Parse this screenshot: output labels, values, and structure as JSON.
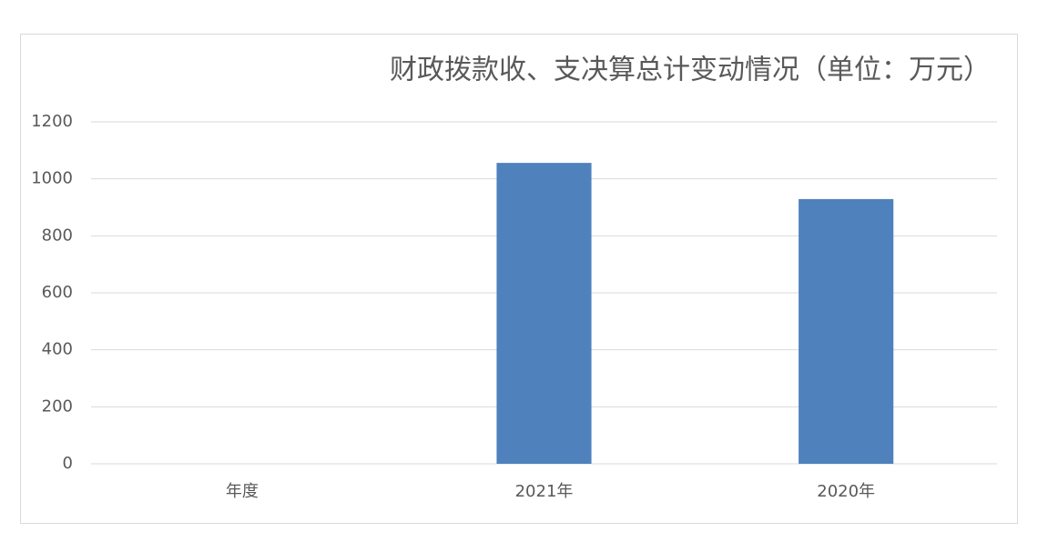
{
  "chart_data": {
    "type": "bar",
    "title": "财政拨款收、支决算总计变动情况（单位：万元）",
    "categories": [
      "年度",
      "2021年",
      "2020年"
    ],
    "values": [
      null,
      1056,
      929
    ],
    "color": "#4f81bd",
    "ylim": [
      0,
      1200
    ],
    "yticks": [
      0,
      200,
      400,
      600,
      800,
      1000,
      1200
    ],
    "grid": true
  }
}
